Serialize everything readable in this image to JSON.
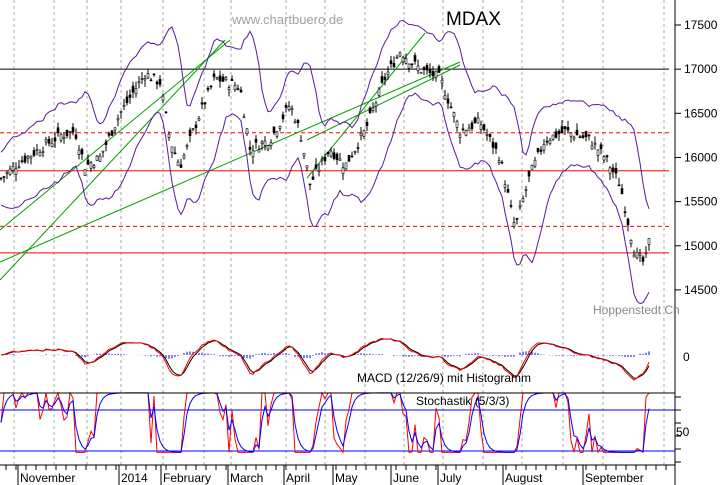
{
  "chart_data": {
    "type": "candlestick",
    "title": "MDAX",
    "watermark": "www.chartbuero.de",
    "source": "Hoppenstedt Ch",
    "price_axis": {
      "ticks": [
        "17500",
        "17000",
        "16500",
        "16000",
        "15500",
        "15000",
        "14500"
      ],
      "range": [
        14300,
        17800
      ]
    },
    "x_labels": [
      "November",
      "2014",
      "February",
      "March",
      "April",
      "May",
      "June",
      "July",
      "August",
      "September"
    ],
    "close_approx": {
      "t": [
        0,
        20,
        40,
        60,
        75,
        85,
        100,
        120,
        145,
        160,
        170,
        180,
        200,
        215,
        240,
        250,
        270,
        290,
        300,
        310,
        330,
        345,
        365,
        385,
        400,
        420,
        440,
        460,
        480,
        500,
        515,
        530,
        545,
        565,
        590,
        605,
        620,
        635,
        645,
        650
      ],
      "v": [
        15750,
        15950,
        16100,
        16250,
        16300,
        15900,
        16000,
        16500,
        16950,
        16850,
        16200,
        15900,
        16500,
        16900,
        16800,
        16100,
        16200,
        16600,
        16300,
        15700,
        16100,
        15900,
        16300,
        16900,
        17200,
        17000,
        16900,
        16300,
        16400,
        16000,
        15200,
        15800,
        16200,
        16300,
        16200,
        16000,
        15700,
        14900,
        14800,
        15100
      ]
    },
    "horizontal_levels": [
      {
        "value": 17000,
        "color": "#000000",
        "style": "solid"
      },
      {
        "value": 16280,
        "color": "#ff0000",
        "style": "dashed"
      },
      {
        "value": 15850,
        "color": "#ff0000",
        "style": "solid"
      },
      {
        "value": 15220,
        "color": "#ff0000",
        "style": "dashed"
      },
      {
        "value": 14920,
        "color": "#ff0000",
        "style": "solid"
      }
    ],
    "macd": {
      "label": "MACD (12/26/9) mit Histogramm",
      "tick": "0"
    },
    "stochastic": {
      "label": "Stochastik (5/3/3)",
      "tick": "50",
      "levels": [
        80,
        20
      ]
    },
    "colors": {
      "band": "#5a1a9a",
      "trend": "#00a000",
      "signal": "#ff0000",
      "hist": "#0000ff"
    }
  }
}
